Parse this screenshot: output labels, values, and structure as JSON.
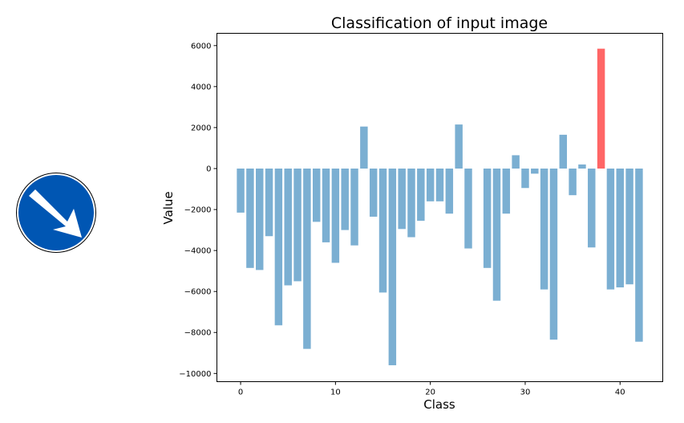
{
  "chart_data": {
    "type": "bar",
    "title": "Classification of input image",
    "xlabel": "Class",
    "ylabel": "Value",
    "xlim": [
      -2.5,
      44.5
    ],
    "ylim": [
      -10400,
      6600
    ],
    "x_ticks": [
      0,
      10,
      20,
      30,
      40
    ],
    "y_ticks": [
      -10000,
      -8000,
      -6000,
      -4000,
      -2000,
      0,
      2000,
      4000,
      6000
    ],
    "grid": false,
    "categories": [
      0,
      1,
      2,
      3,
      4,
      5,
      6,
      7,
      8,
      9,
      10,
      11,
      12,
      13,
      14,
      15,
      16,
      17,
      18,
      19,
      20,
      21,
      22,
      23,
      24,
      25,
      26,
      27,
      28,
      29,
      30,
      31,
      32,
      33,
      34,
      35,
      36,
      37,
      38,
      39,
      40,
      41,
      42
    ],
    "values": [
      -2150,
      -4850,
      -4950,
      -3300,
      -7650,
      -5700,
      -5500,
      -8800,
      -2600,
      -3600,
      -4600,
      -3000,
      -3750,
      2050,
      -2350,
      -6050,
      -9600,
      -2950,
      -3350,
      -2550,
      -1600,
      -1600,
      -2200,
      2150,
      -3900,
      0,
      -4850,
      -6450,
      -2200,
      650,
      -950,
      -250,
      -5900,
      -8350,
      1650,
      -1300,
      200,
      -3850,
      5850,
      -5900,
      -5800,
      -5650,
      -8450
    ],
    "highlight_index": 38,
    "bar_color": "#7bafd2",
    "highlight_color": "#ff6666"
  },
  "image_panel": {
    "sign": "keep-right-sign",
    "sign_color": "#0056b3",
    "arrow_color": "#ffffff"
  }
}
